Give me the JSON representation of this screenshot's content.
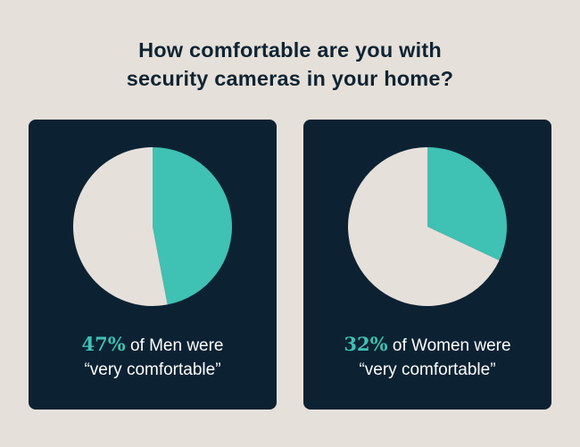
{
  "title_lines": [
    "How comfortable are you with",
    "security cameras in your home?"
  ],
  "colors": {
    "background": "#e6e0da",
    "card": "#0c2233",
    "highlight": "#3fc1b3",
    "rest": "#e6e0da",
    "title": "#0f2433"
  },
  "chart_data": [
    {
      "type": "pie",
      "group": "Men",
      "slices": [
        {
          "label": "very comfortable",
          "value": 47
        },
        {
          "label": "other",
          "value": 53
        }
      ],
      "caption": {
        "pct": "47%",
        "text1": " of Men were",
        "text2": "“very comfortable”"
      }
    },
    {
      "type": "pie",
      "group": "Women",
      "slices": [
        {
          "label": "very comfortable",
          "value": 32
        },
        {
          "label": "other",
          "value": 68
        }
      ],
      "caption": {
        "pct": "32%",
        "text1": " of Women were",
        "text2": "“very comfortable”"
      }
    }
  ]
}
